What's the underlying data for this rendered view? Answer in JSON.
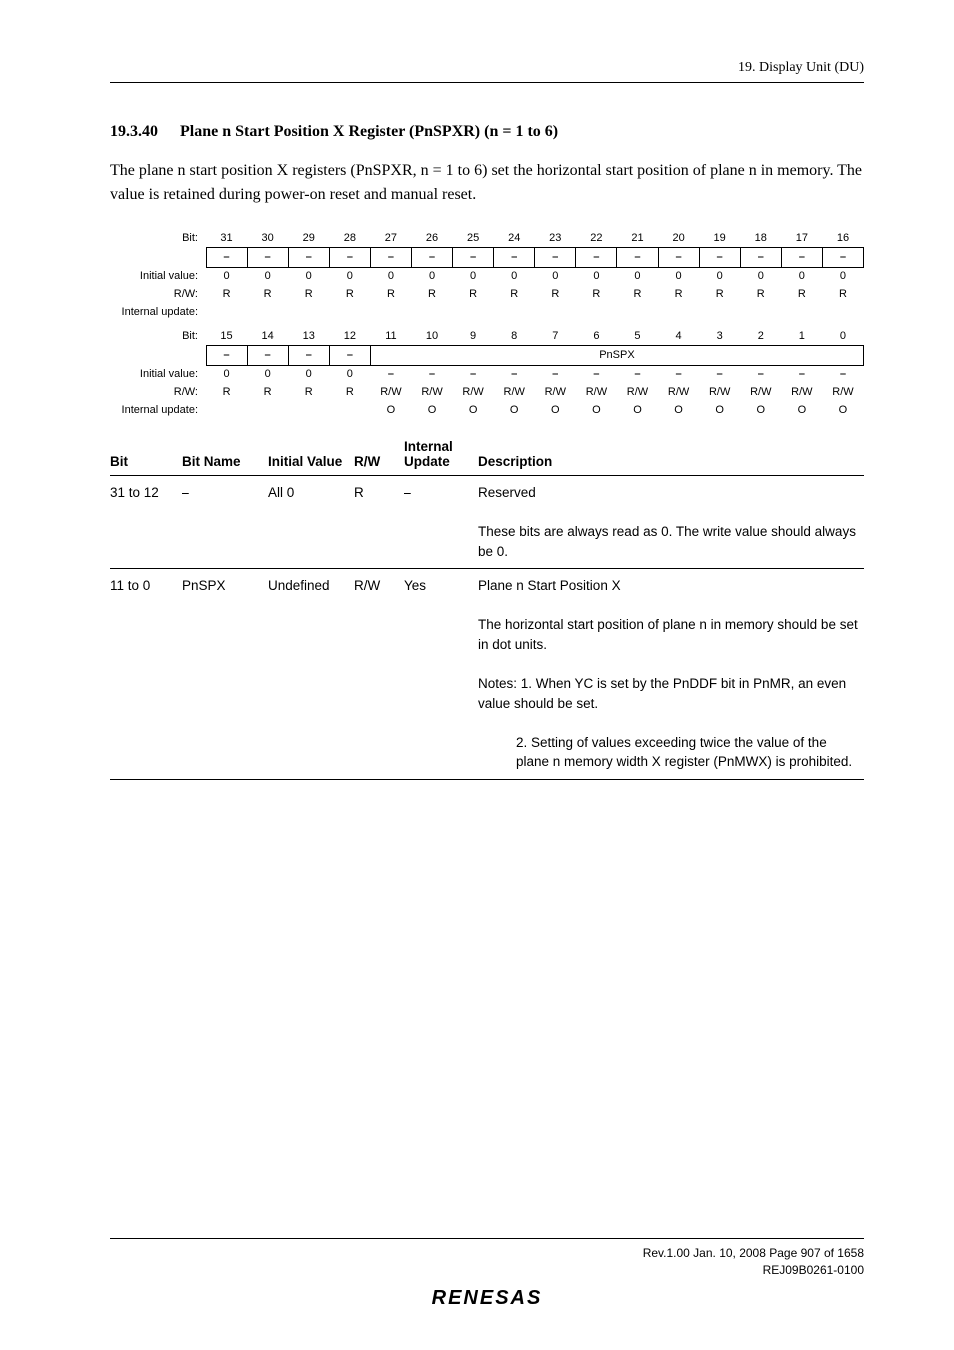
{
  "header": {
    "text": "19.   Display Unit (DU)"
  },
  "section": {
    "number": "19.3.40",
    "title": "Plane n Start Position X Register (PnSPXR) (n = 1 to 6)"
  },
  "intro": "The plane n start position X registers (PnSPXR, n = 1 to 6) set the horizontal start position of plane n in memory. The value is retained during power-on reset and manual reset.",
  "bit1": {
    "bits": [
      "31",
      "30",
      "29",
      "28",
      "27",
      "26",
      "25",
      "24",
      "23",
      "22",
      "21",
      "20",
      "19",
      "18",
      "17",
      "16"
    ],
    "cells": [
      "⎯",
      "⎯",
      "⎯",
      "⎯",
      "⎯",
      "⎯",
      "⎯",
      "⎯",
      "⎯",
      "⎯",
      "⎯",
      "⎯",
      "⎯",
      "⎯",
      "⎯",
      "⎯"
    ],
    "initial": [
      "0",
      "0",
      "0",
      "0",
      "0",
      "0",
      "0",
      "0",
      "0",
      "0",
      "0",
      "0",
      "0",
      "0",
      "0",
      "0"
    ],
    "rw": [
      "R",
      "R",
      "R",
      "R",
      "R",
      "R",
      "R",
      "R",
      "R",
      "R",
      "R",
      "R",
      "R",
      "R",
      "R",
      "R"
    ],
    "labels": {
      "bit": "Bit:",
      "init": "Initial value:",
      "rw": "R/W:",
      "upd": "Internal update:"
    }
  },
  "bit2": {
    "bits": [
      "15",
      "14",
      "13",
      "12",
      "11",
      "10",
      "9",
      "8",
      "7",
      "6",
      "5",
      "4",
      "3",
      "2",
      "1",
      "0"
    ],
    "leftcells": [
      "⎯",
      "⎯",
      "⎯",
      "⎯"
    ],
    "span_label": "PnSPX",
    "initial": [
      "0",
      "0",
      "0",
      "0",
      "⎯",
      "⎯",
      "⎯",
      "⎯",
      "⎯",
      "⎯",
      "⎯",
      "⎯",
      "⎯",
      "⎯",
      "⎯",
      "⎯"
    ],
    "rw": [
      "R",
      "R",
      "R",
      "R",
      "R/W",
      "R/W",
      "R/W",
      "R/W",
      "R/W",
      "R/W",
      "R/W",
      "R/W",
      "R/W",
      "R/W",
      "R/W",
      "R/W"
    ],
    "upd": [
      "",
      "",
      "",
      "",
      "O",
      "O",
      "O",
      "O",
      "O",
      "O",
      "O",
      "O",
      "O",
      "O",
      "O",
      "O"
    ],
    "labels": {
      "bit": "Bit:",
      "init": "Initial value:",
      "rw": "R/W:",
      "upd": "Internal update:"
    }
  },
  "descTable": {
    "head": [
      "Bit",
      "Bit Name",
      "Initial Value",
      "R/W",
      "Internal Update",
      "Description"
    ],
    "rows": [
      {
        "bit": "31 to 12",
        "bname": "⎯",
        "init": "All 0",
        "rw": "R",
        "upd": "⎯",
        "desc_lines": [
          "Reserved",
          "These bits are always read as 0. The write value should always be 0."
        ]
      },
      {
        "bit": "11 to 0",
        "bname": "PnSPX",
        "init": "Undefined",
        "rw": "R/W",
        "upd": "Yes",
        "desc_lines": [
          "Plane n Start Position X",
          "The horizontal start position of plane n in memory should be set in dot units.",
          "Notes: 1. When YC is set by the PnDDF bit in PnMR, an even value should be set.",
          "2. Setting of values exceeding twice the value of the plane n memory width X register (PnMWX) is prohibited."
        ]
      }
    ]
  },
  "footer": {
    "line1": "Rev.1.00  Jan. 10, 2008  Page 907 of 1658",
    "line2": "REJ09B0261-0100",
    "brand": "RENESAS"
  }
}
